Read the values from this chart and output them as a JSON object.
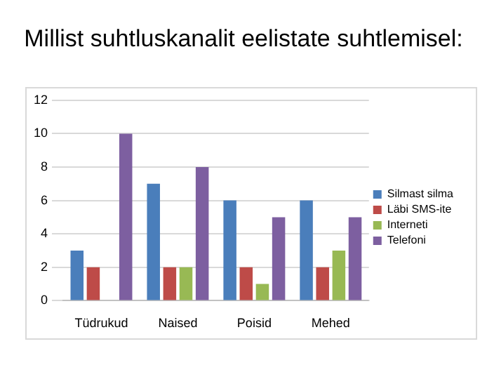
{
  "chart_data": {
    "type": "bar",
    "title": "Millist suhtluskanalit eelistate suhtlemisel:",
    "categories": [
      "Tüdrukud",
      "Naised",
      "Poisid",
      "Mehed"
    ],
    "series": [
      {
        "name": "Silmast silma",
        "color": "#4a7ebb",
        "values": [
          3,
          7,
          6,
          6
        ]
      },
      {
        "name": "Läbi SMS-ite",
        "color": "#be4b48",
        "values": [
          2,
          2,
          2,
          2
        ]
      },
      {
        "name": "Interneti",
        "color": "#98b954",
        "values": [
          0,
          2,
          1,
          3
        ]
      },
      {
        "name": "Telefoni",
        "color": "#7d5fa0",
        "values": [
          10,
          8,
          5,
          5
        ]
      }
    ],
    "ylim": [
      0,
      12
    ],
    "yticks": [
      0,
      2,
      4,
      6,
      8,
      10,
      12
    ],
    "grid": "y",
    "legend": "right"
  }
}
